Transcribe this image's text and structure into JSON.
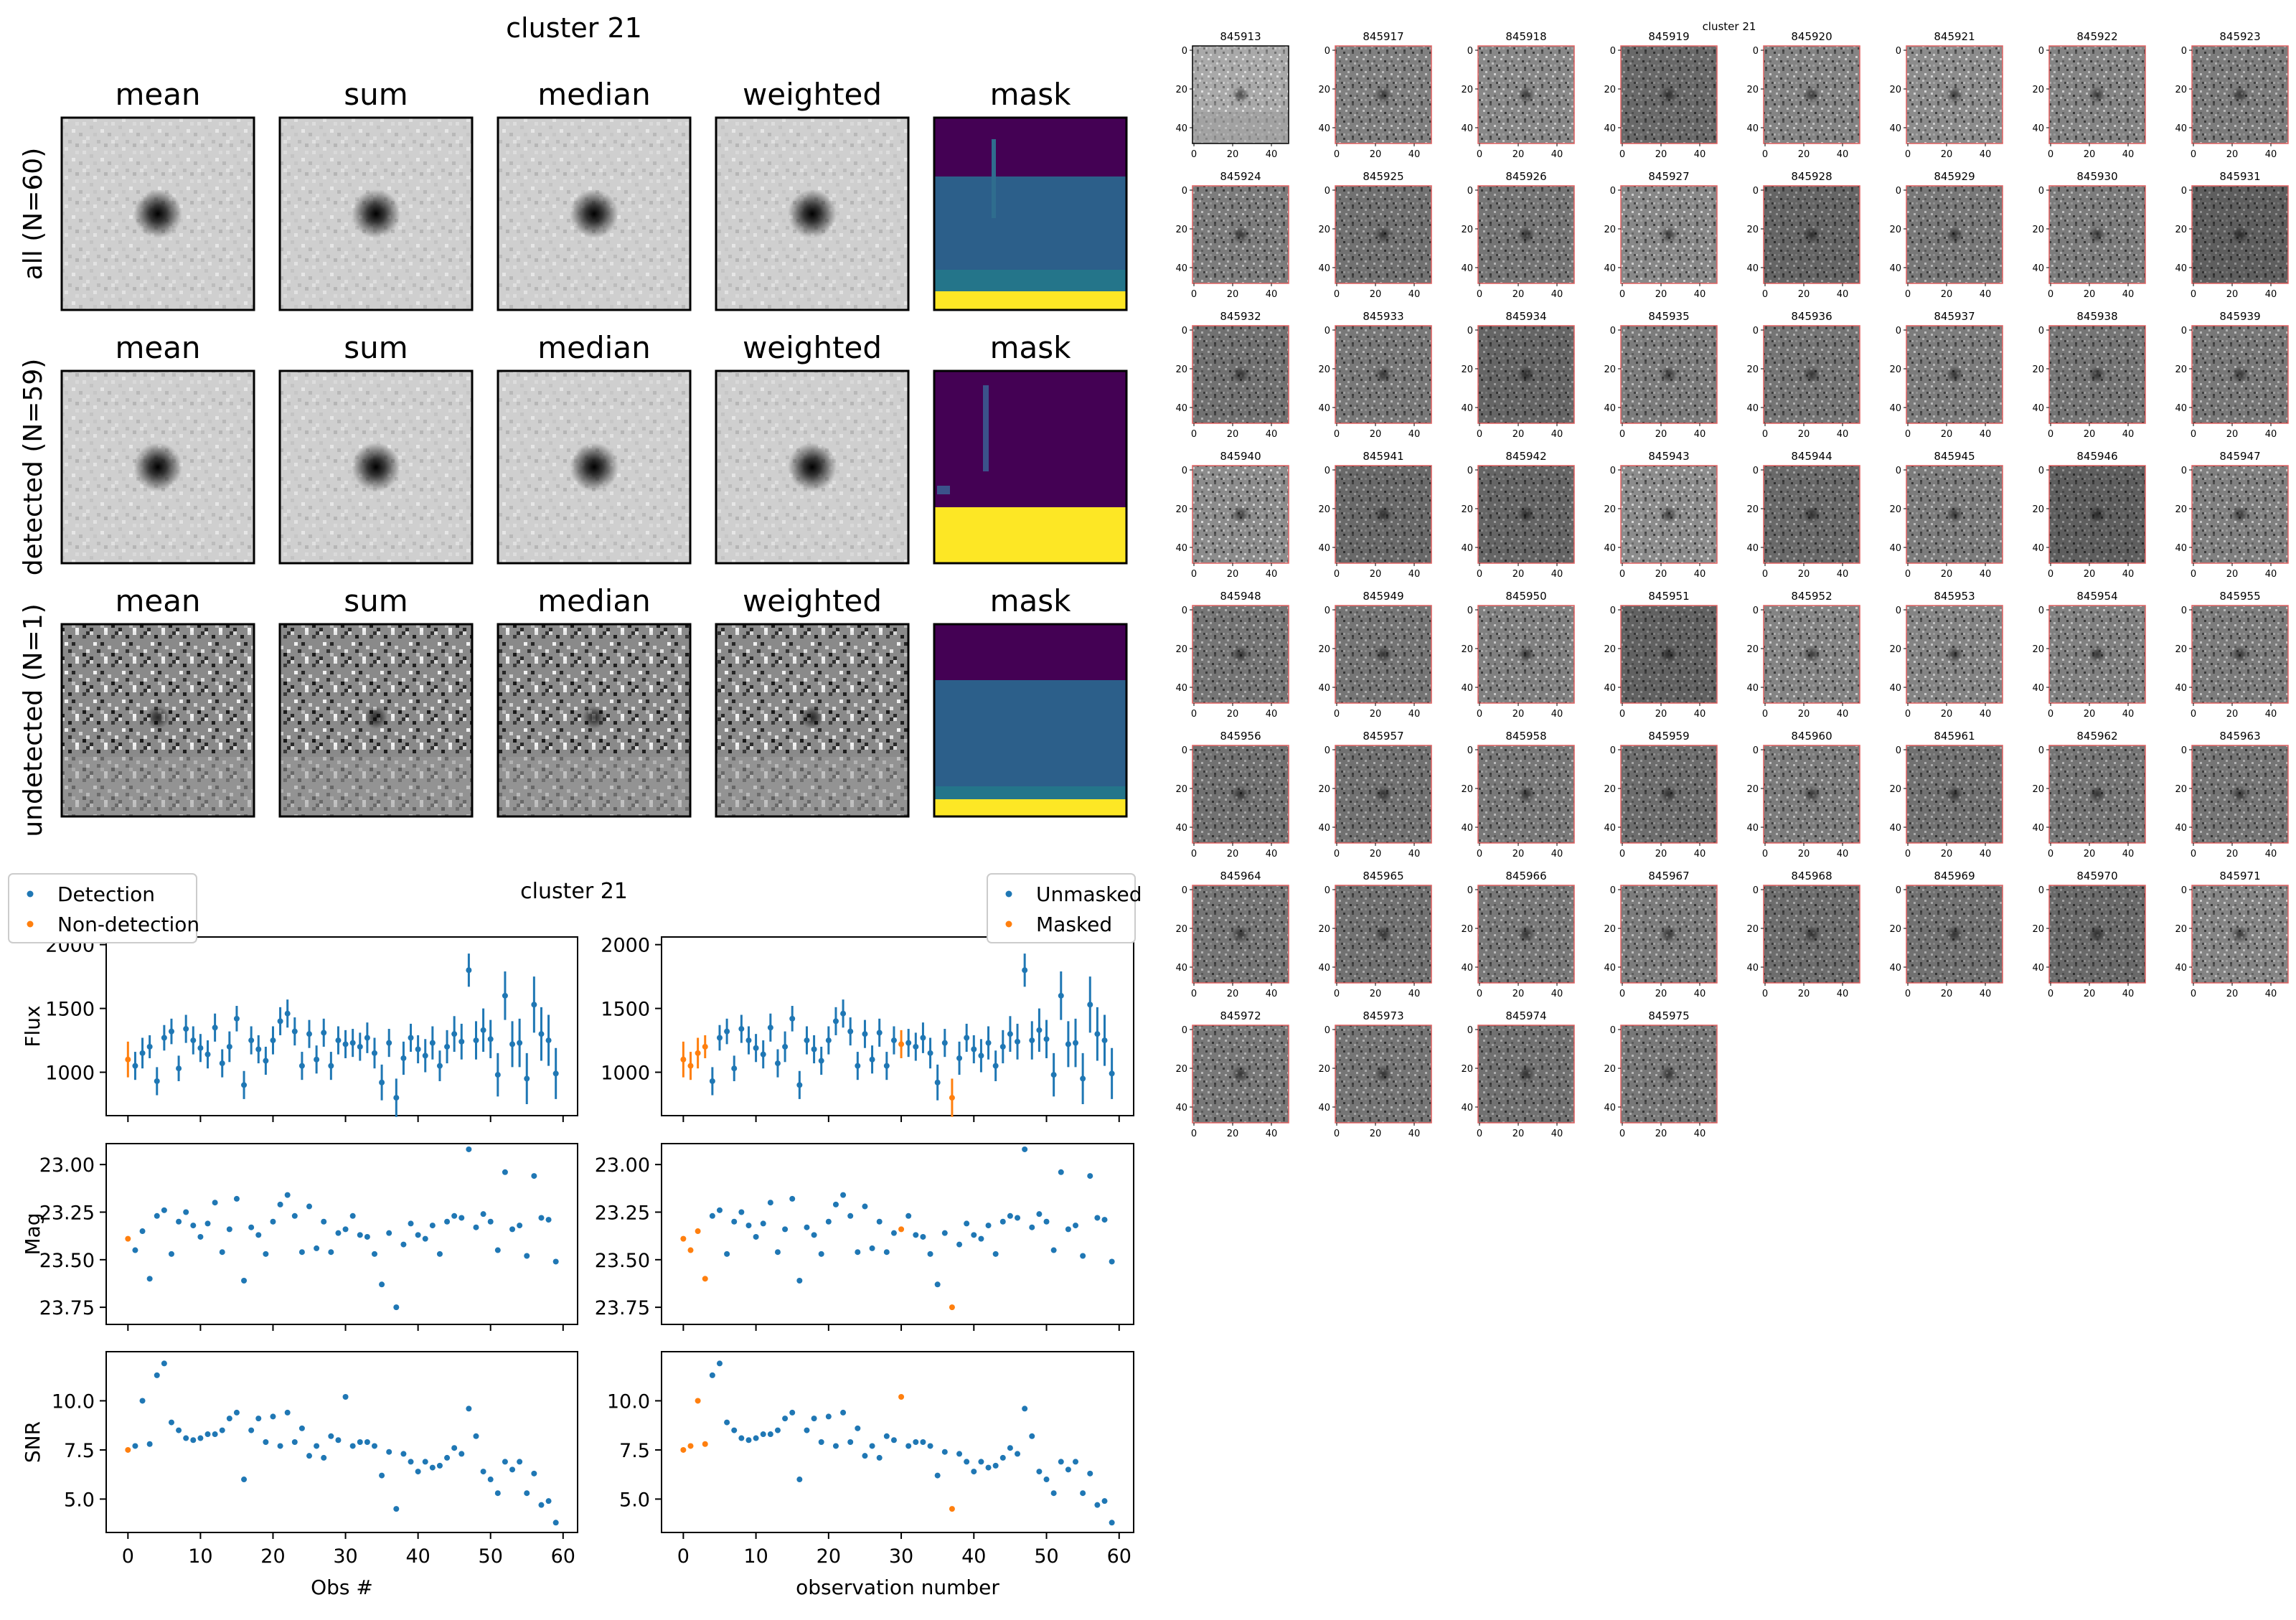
{
  "figure": {
    "title": "cluster 21",
    "rows": [
      {
        "label": "all (N=60)"
      },
      {
        "label": "detected (N=59)"
      },
      {
        "label": "undetected (N=1)"
      }
    ],
    "stack_titles": [
      "mean",
      "sum",
      "median",
      "weighted",
      "mask"
    ]
  },
  "lightcurve": {
    "title": "cluster 21",
    "legend_left": [
      "Detection",
      "Non-detection"
    ],
    "legend_right": [
      "Unmasked",
      "Masked"
    ],
    "ylabels": [
      "Flux",
      "Mag",
      "SNR"
    ],
    "xlabel_left": "Obs #",
    "xlabel_right": "observation number",
    "colors": {
      "blue": "#1f77b4",
      "orange": "#ff7f0e"
    }
  },
  "grid": {
    "title": "cluster 21",
    "ids": [
      "845913",
      "845917",
      "845918",
      "845919",
      "845920",
      "845921",
      "845922",
      "845923",
      "845924",
      "845925",
      "845926",
      "845927",
      "845928",
      "845929",
      "845930",
      "845931",
      "845932",
      "845933",
      "845934",
      "845935",
      "845936",
      "845937",
      "845938",
      "845939",
      "845940",
      "845941",
      "845942",
      "845943",
      "845944",
      "845945",
      "845946",
      "845947",
      "845948",
      "845949",
      "845950",
      "845951",
      "845952",
      "845953",
      "845954",
      "845955",
      "845956",
      "845957",
      "845958",
      "845959",
      "845960",
      "845961",
      "845962",
      "845963",
      "845964",
      "845965",
      "845966",
      "845967",
      "845968",
      "845969",
      "845970",
      "845971",
      "845972",
      "845973",
      "845974",
      "845975"
    ],
    "yticks": [
      "0",
      "20",
      "40"
    ],
    "xticks": [
      "0",
      "20",
      "40"
    ]
  },
  "chart_data": [
    {
      "type": "scatter",
      "panel": "flux",
      "ylabel": "Flux",
      "xlim": [
        -3,
        62
      ],
      "ylim": [
        660,
        2060
      ],
      "yticks": [
        1000,
        1500,
        2000
      ],
      "xticks": [
        0,
        10,
        20,
        30,
        40,
        50,
        60
      ],
      "x": [
        0,
        1,
        2,
        3,
        4,
        5,
        6,
        7,
        8,
        9,
        10,
        11,
        12,
        13,
        14,
        15,
        16,
        17,
        18,
        19,
        20,
        21,
        22,
        23,
        24,
        25,
        26,
        27,
        28,
        29,
        30,
        31,
        32,
        33,
        34,
        35,
        36,
        37,
        38,
        39,
        40,
        41,
        42,
        43,
        44,
        45,
        46,
        47,
        48,
        49,
        50,
        51,
        52,
        53,
        54,
        55,
        56,
        57,
        58,
        59
      ],
      "y": [
        1100,
        1050,
        1150,
        1200,
        930,
        1270,
        1320,
        1030,
        1340,
        1250,
        1190,
        1140,
        1350,
        1070,
        1200,
        1420,
        900,
        1250,
        1180,
        1090,
        1250,
        1400,
        1460,
        1320,
        1050,
        1300,
        1100,
        1310,
        1050,
        1250,
        1220,
        1230,
        1200,
        1270,
        1150,
        920,
        1230,
        800,
        1110,
        1270,
        1180,
        1130,
        1230,
        1050,
        1200,
        1300,
        1240,
        1800,
        1250,
        1330,
        1260,
        980,
        1600,
        1220,
        1230,
        950,
        1530,
        1300,
        1250,
        990
      ],
      "err": [
        140,
        110,
        120,
        90,
        110,
        100,
        100,
        100,
        110,
        110,
        110,
        110,
        110,
        110,
        120,
        100,
        110,
        110,
        110,
        110,
        110,
        110,
        110,
        110,
        110,
        110,
        110,
        110,
        110,
        110,
        110,
        110,
        110,
        120,
        120,
        140,
        110,
        150,
        130,
        110,
        110,
        130,
        130,
        120,
        130,
        140,
        140,
        130,
        150,
        170,
        150,
        170,
        190,
        180,
        190,
        200,
        220,
        210,
        200,
        200
      ],
      "series": [
        {
          "name": "Detection",
          "indices": "all except 0"
        },
        {
          "name": "Non-detection",
          "indices": [
            0
          ]
        }
      ]
    },
    {
      "type": "scatter",
      "panel": "mag",
      "ylabel": "Mag",
      "xlim": [
        -3,
        62
      ],
      "ylim": [
        23.84,
        22.89
      ],
      "yticks": [
        23.0,
        23.25,
        23.5,
        23.75
      ],
      "ytick_labels": [
        "23.00",
        "23.25",
        "23.50",
        "23.75"
      ],
      "xticks": [
        0,
        10,
        20,
        30,
        40,
        50,
        60
      ],
      "x": [
        0,
        1,
        2,
        3,
        4,
        5,
        6,
        7,
        8,
        9,
        10,
        11,
        12,
        13,
        14,
        15,
        16,
        17,
        18,
        19,
        20,
        21,
        22,
        23,
        24,
        25,
        26,
        27,
        28,
        29,
        30,
        31,
        32,
        33,
        34,
        35,
        36,
        37,
        38,
        39,
        40,
        41,
        42,
        43,
        44,
        45,
        46,
        47,
        48,
        49,
        50,
        51,
        52,
        53,
        54,
        55,
        56,
        57,
        58,
        59
      ],
      "y": [
        23.39,
        23.45,
        23.35,
        23.6,
        23.27,
        23.24,
        23.47,
        23.3,
        23.25,
        23.32,
        23.38,
        23.31,
        23.2,
        23.46,
        23.34,
        23.18,
        23.61,
        23.33,
        23.37,
        23.47,
        23.3,
        23.21,
        23.16,
        23.27,
        23.46,
        23.22,
        23.44,
        23.3,
        23.46,
        23.36,
        23.34,
        23.27,
        23.37,
        23.38,
        23.47,
        23.63,
        23.36,
        23.75,
        23.42,
        23.31,
        23.37,
        23.39,
        23.32,
        23.47,
        23.3,
        23.27,
        23.28,
        22.92,
        23.33,
        23.26,
        23.3,
        23.45,
        23.04,
        23.34,
        23.32,
        23.48,
        23.06,
        23.28,
        23.29,
        23.51
      ],
      "series": [
        {
          "name": "Detection",
          "indices": "all except 0"
        },
        {
          "name": "Non-detection",
          "indices": [
            0
          ]
        }
      ]
    },
    {
      "type": "scatter",
      "panel": "snr",
      "ylabel": "SNR",
      "xlabel": "Obs #",
      "xlim": [
        -3,
        62
      ],
      "ylim": [
        3.3,
        12.5
      ],
      "yticks": [
        5.0,
        7.5,
        10.0
      ],
      "ytick_labels": [
        "5.0",
        "7.5",
        "10.0"
      ],
      "xticks": [
        0,
        10,
        20,
        30,
        40,
        50,
        60
      ],
      "x": [
        0,
        1,
        2,
        3,
        4,
        5,
        6,
        7,
        8,
        9,
        10,
        11,
        12,
        13,
        14,
        15,
        16,
        17,
        18,
        19,
        20,
        21,
        22,
        23,
        24,
        25,
        26,
        27,
        28,
        29,
        30,
        31,
        32,
        33,
        34,
        35,
        36,
        37,
        38,
        39,
        40,
        41,
        42,
        43,
        44,
        45,
        46,
        47,
        48,
        49,
        50,
        51,
        52,
        53,
        54,
        55,
        56,
        57,
        58,
        59
      ],
      "y": [
        7.5,
        7.7,
        10.0,
        7.8,
        11.3,
        11.9,
        8.9,
        8.5,
        8.1,
        8.0,
        8.1,
        8.3,
        8.3,
        8.5,
        9.1,
        9.4,
        6.0,
        8.5,
        9.1,
        7.9,
        9.2,
        7.7,
        9.4,
        7.9,
        8.6,
        7.2,
        7.7,
        7.1,
        8.2,
        8.0,
        10.2,
        7.7,
        7.9,
        7.9,
        7.7,
        6.2,
        7.4,
        4.5,
        7.3,
        6.9,
        6.4,
        6.9,
        6.6,
        6.7,
        7.1,
        7.6,
        7.3,
        9.6,
        8.2,
        6.4,
        6.0,
        5.3,
        6.9,
        6.5,
        6.9,
        5.3,
        6.3,
        4.7,
        4.9,
        3.8
      ],
      "series": [
        {
          "name": "Detection",
          "indices": "all except 0"
        },
        {
          "name": "Non-detection",
          "indices": [
            0
          ]
        }
      ]
    },
    {
      "type": "scatter",
      "panel": "flux-right",
      "ylabel": "",
      "note": "same values as left panels; masked observations highlighted",
      "xlabel": "observation number",
      "series": [
        {
          "name": "Unmasked",
          "indices": "all except masked"
        },
        {
          "name": "Masked",
          "indices": [
            0,
            1,
            2,
            3,
            30,
            37
          ]
        }
      ]
    }
  ]
}
